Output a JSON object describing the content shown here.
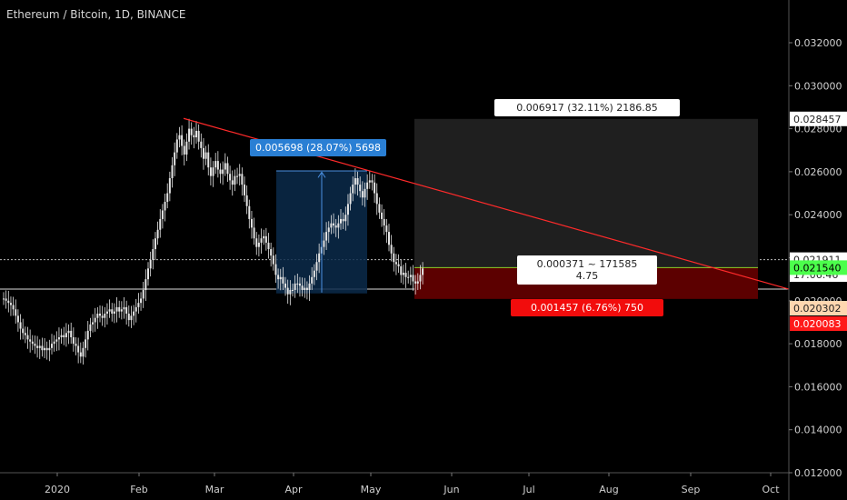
{
  "header": {
    "title": "Ethereum / Bitcoin, 1D, BINANCE"
  },
  "measure": {
    "label": "0.005698 (28.07%) 5698"
  },
  "position": {
    "target_label": "0.006917 (32.11%) 2186.85",
    "risk_reward_line1": "0.000371 ~ 171585",
    "risk_reward_line2": "4.75",
    "stop_label": "0.001457 (6.76%) 750",
    "colors": {
      "profit_zone": "#1f1f1f",
      "loss_zone": "#5c0000",
      "trend_line": "#ff2a2a",
      "measure_fill": "#0b2a4a"
    }
  },
  "chart_data": {
    "type": "candlestick",
    "title": "Ethereum / Bitcoin, 1D, BINANCE",
    "ylim": [
      0.012,
      0.0335
    ],
    "y_ticks": [
      "0.012000",
      "0.014000",
      "0.016000",
      "0.018000",
      "0.020000",
      "0.022000",
      "0.024000",
      "0.026000",
      "0.028000",
      "0.030000",
      "0.032000"
    ],
    "x_ticks": [
      "2020",
      "Feb",
      "Mar",
      "Apr",
      "May",
      "Jun",
      "Jul",
      "Aug",
      "Sep",
      "Oct"
    ],
    "price_badges": [
      {
        "label": "0.028457",
        "value": 0.028457,
        "bg": "#ffffff",
        "fg": "#222222"
      },
      {
        "label": "0.021911",
        "value": 0.021911,
        "bg": "#ffffff",
        "fg": "#222222"
      },
      {
        "label": "17:06:46",
        "value": 0.0212,
        "bg": "#ffffff",
        "fg": "#222222"
      },
      {
        "label": "0.021540",
        "value": 0.02154,
        "bg": "#4cff4c",
        "fg": "#000000"
      },
      {
        "label": "0.020302",
        "value": 0.020302,
        "bg": "#ffd7b0",
        "fg": "#222222"
      },
      {
        "label": "0.020083",
        "value": 0.020083,
        "bg": "#ff1a1a",
        "fg": "#ffffff"
      }
    ],
    "closes": [
      0.0201,
      0.02,
      0.0199,
      0.0198,
      0.0196,
      0.0193,
      0.019,
      0.0187,
      0.0185,
      0.0184,
      0.0182,
      0.0181,
      0.018,
      0.0179,
      0.0178,
      0.0179,
      0.0177,
      0.0178,
      0.0177,
      0.0178,
      0.018,
      0.0181,
      0.0182,
      0.0183,
      0.0184,
      0.0183,
      0.0185,
      0.0186,
      0.0183,
      0.018,
      0.0179,
      0.0176,
      0.0174,
      0.0178,
      0.0182,
      0.0186,
      0.0189,
      0.019,
      0.0192,
      0.0194,
      0.0193,
      0.0192,
      0.0194,
      0.0195,
      0.0196,
      0.0194,
      0.0195,
      0.0197,
      0.0195,
      0.0196,
      0.0197,
      0.0194,
      0.0191,
      0.0193,
      0.0195,
      0.0197,
      0.0199,
      0.0201,
      0.0205,
      0.021,
      0.0215,
      0.0219,
      0.0224,
      0.0229,
      0.0233,
      0.0238,
      0.0242,
      0.0246,
      0.025,
      0.0257,
      0.0263,
      0.0269,
      0.0275,
      0.0277,
      0.0272,
      0.0268,
      0.0274,
      0.028,
      0.0277,
      0.0276,
      0.0279,
      0.0274,
      0.0271,
      0.0266,
      0.0269,
      0.0262,
      0.0258,
      0.0262,
      0.0265,
      0.0261,
      0.0259,
      0.0261,
      0.0264,
      0.0259,
      0.0256,
      0.0254,
      0.0258,
      0.0258,
      0.0259,
      0.0254,
      0.0249,
      0.0244,
      0.0238,
      0.0234,
      0.0229,
      0.0225,
      0.0227,
      0.0229,
      0.023,
      0.0227,
      0.0224,
      0.0221,
      0.0217,
      0.0212,
      0.021,
      0.0211,
      0.0208,
      0.0206,
      0.0203,
      0.0205,
      0.0205,
      0.0208,
      0.0208,
      0.0207,
      0.0205,
      0.0206,
      0.0205,
      0.0208,
      0.0211,
      0.0214,
      0.0218,
      0.0222,
      0.0225,
      0.0228,
      0.0232,
      0.0234,
      0.0236,
      0.0235,
      0.0234,
      0.0236,
      0.0238,
      0.0237,
      0.024,
      0.0245,
      0.025,
      0.0254,
      0.0257,
      0.0254,
      0.0251,
      0.0248,
      0.0252,
      0.0255,
      0.0256,
      0.0255,
      0.025,
      0.0245,
      0.0241,
      0.0238,
      0.0235,
      0.0232,
      0.0226,
      0.0222,
      0.0218,
      0.0217,
      0.0216,
      0.0212,
      0.0213,
      0.0211,
      0.0211,
      0.0212,
      0.0209,
      0.0208,
      0.0209,
      0.0212,
      0.0215
    ]
  }
}
